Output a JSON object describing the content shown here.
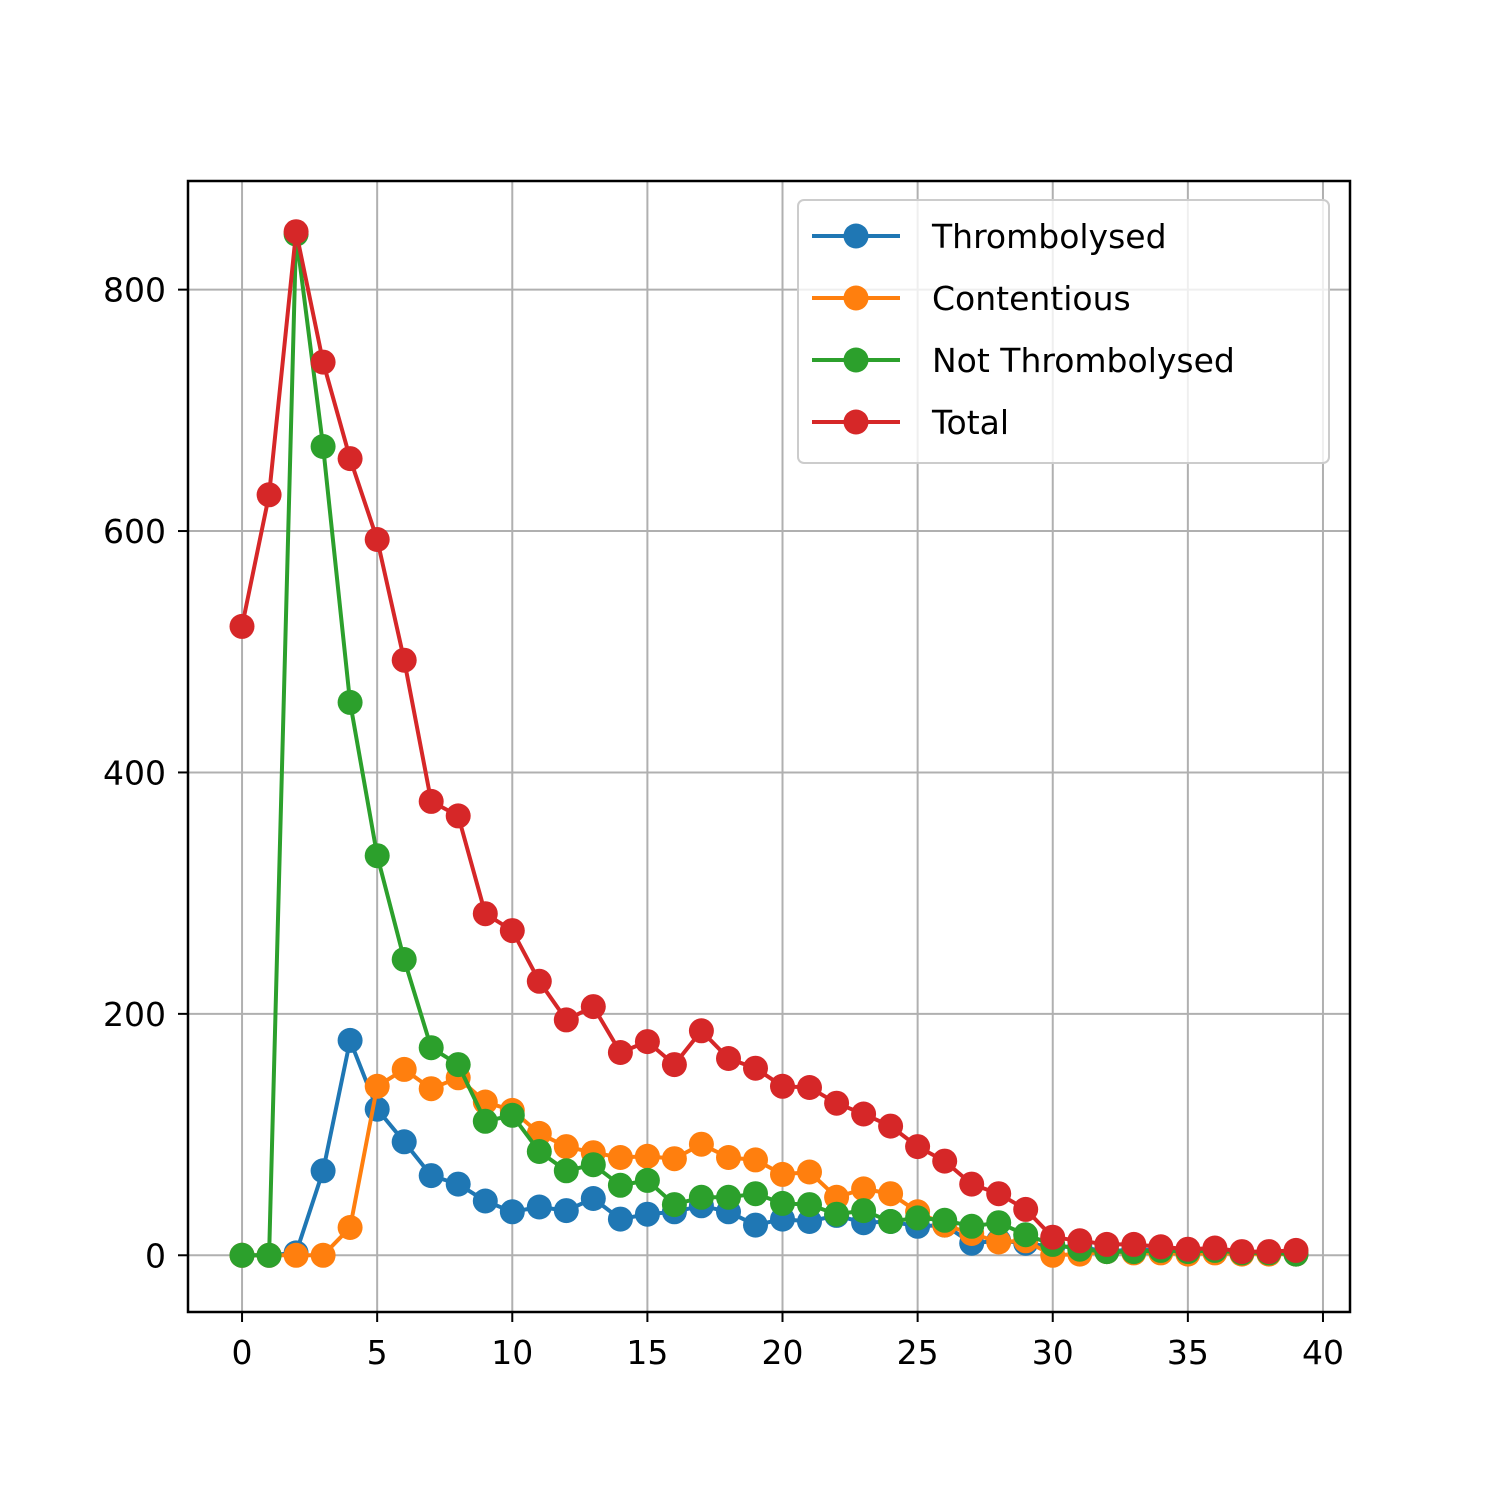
{
  "chart_data": {
    "type": "line",
    "title": "",
    "xlabel": "",
    "ylabel": "",
    "xlim": [
      -2,
      41
    ],
    "ylim": [
      -47,
      890
    ],
    "xticks": [
      0,
      5,
      10,
      15,
      20,
      25,
      30,
      35,
      40
    ],
    "yticks": [
      0,
      200,
      400,
      600,
      800
    ],
    "grid": true,
    "legend_position": "upper right",
    "x": [
      0,
      1,
      2,
      3,
      4,
      5,
      6,
      7,
      8,
      9,
      10,
      11,
      12,
      13,
      14,
      15,
      16,
      17,
      18,
      19,
      20,
      21,
      22,
      23,
      24,
      25,
      26,
      27,
      28,
      29,
      30,
      31,
      32,
      33,
      34,
      35,
      36,
      37,
      38,
      39
    ],
    "series": [
      {
        "name": "Thrombolysed",
        "color": "#1f77b4",
        "values": [
          0,
          0,
          2,
          70,
          178,
          121,
          94,
          66,
          59,
          45,
          36,
          40,
          37,
          47,
          30,
          34,
          36,
          41,
          36,
          25,
          30,
          28,
          33,
          27,
          28,
          24,
          25,
          10,
          12,
          10,
          7,
          7,
          3,
          5,
          4,
          3,
          3,
          2,
          2,
          1
        ]
      },
      {
        "name": "Contentious",
        "color": "#ff7f0e",
        "values": [
          0,
          0,
          0,
          0,
          23,
          140,
          154,
          138,
          147,
          127,
          120,
          101,
          90,
          85,
          81,
          82,
          80,
          92,
          81,
          79,
          67,
          69,
          48,
          55,
          51,
          36,
          25,
          18,
          11,
          12,
          0,
          1,
          3,
          2,
          2,
          1,
          2,
          1,
          1,
          1
        ]
      },
      {
        "name": "Not Thrombolysed",
        "color": "#2ca02c",
        "values": [
          0,
          0,
          846,
          670,
          458,
          331,
          245,
          172,
          158,
          111,
          116,
          86,
          70,
          75,
          58,
          62,
          42,
          48,
          48,
          51,
          43,
          42,
          34,
          37,
          28,
          31,
          29,
          24,
          27,
          17,
          9,
          5,
          3,
          3,
          4,
          3,
          4,
          2,
          2,
          1
        ]
      },
      {
        "name": "Total",
        "color": "#d62728",
        "values": [
          521,
          630,
          848,
          740,
          660,
          593,
          493,
          376,
          364,
          283,
          269,
          227,
          195,
          206,
          168,
          177,
          158,
          186,
          163,
          155,
          140,
          139,
          126,
          117,
          107,
          90,
          78,
          59,
          51,
          38,
          15,
          12,
          9,
          9,
          7,
          5,
          6,
          3,
          3,
          4
        ]
      }
    ]
  }
}
